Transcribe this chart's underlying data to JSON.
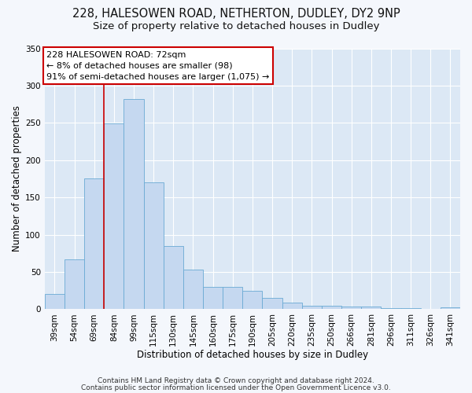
{
  "title1": "228, HALESOWEN ROAD, NETHERTON, DUDLEY, DY2 9NP",
  "title2": "Size of property relative to detached houses in Dudley",
  "xlabel": "Distribution of detached houses by size in Dudley",
  "ylabel": "Number of detached properties",
  "bar_labels": [
    "39sqm",
    "54sqm",
    "69sqm",
    "84sqm",
    "99sqm",
    "115sqm",
    "130sqm",
    "145sqm",
    "160sqm",
    "175sqm",
    "190sqm",
    "205sqm",
    "220sqm",
    "235sqm",
    "250sqm",
    "266sqm",
    "281sqm",
    "296sqm",
    "311sqm",
    "326sqm",
    "341sqm"
  ],
  "bar_values": [
    20,
    67,
    175,
    249,
    282,
    170,
    85,
    53,
    30,
    30,
    25,
    15,
    9,
    5,
    5,
    4,
    4,
    1,
    1,
    0,
    3
  ],
  "bar_color": "#c5d8f0",
  "bar_edge_color": "#6aaad4",
  "ylim": [
    0,
    350
  ],
  "yticks": [
    0,
    50,
    100,
    150,
    200,
    250,
    300,
    350
  ],
  "vline_x_index": 2,
  "vline_color": "#cc0000",
  "annotation_title": "228 HALESOWEN ROAD: 72sqm",
  "annotation_line1": "← 8% of detached houses are smaller (98)",
  "annotation_line2": "91% of semi-detached houses are larger (1,075) →",
  "annotation_box_color": "#ffffff",
  "annotation_box_edge": "#cc0000",
  "footer1": "Contains HM Land Registry data © Crown copyright and database right 2024.",
  "footer2": "Contains public sector information licensed under the Open Government Licence v3.0.",
  "fig_bg_color": "#f4f7fc",
  "plot_bg_color": "#dce8f5",
  "grid_color": "#ffffff",
  "title1_fontsize": 10.5,
  "title2_fontsize": 9.5,
  "axis_label_fontsize": 8.5,
  "tick_fontsize": 7.5,
  "footer_fontsize": 6.5,
  "annotation_fontsize": 8
}
